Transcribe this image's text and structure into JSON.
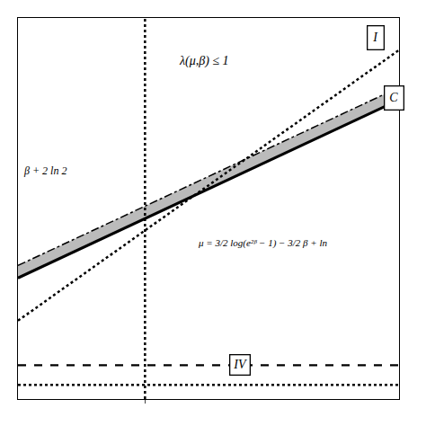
{
  "chart_data": {
    "type": "line",
    "xlim": [
      -0.15,
      1.05
    ],
    "ylim": [
      -0.12,
      0.95
    ],
    "xticks": [
      0.25
    ],
    "yticks": [],
    "tick_labels": false,
    "grid": false,
    "series": [
      {
        "type": "band",
        "x": [
          -0.15,
          1.05
        ],
        "lower": [
          0.222,
          0.718
        ],
        "upper": [
          0.255,
          0.755
        ],
        "color": "#bbbbbb"
      },
      {
        "x": [
          -0.15,
          1.05
        ],
        "values": [
          0.1,
          0.86
        ],
        "color": "#000000",
        "line_style": "dotted"
      },
      {
        "x": [
          -0.15,
          1.05
        ],
        "values": [
          0.22,
          0.72
        ],
        "color": "#000000",
        "line_style": "solid"
      },
      {
        "x": [
          -0.15,
          1.05
        ],
        "values": [
          0.255,
          0.755
        ],
        "color": "#000000",
        "line_style": "dashdot"
      },
      {
        "x": [
          -0.15,
          1.05
        ],
        "values": [
          -0.025,
          -0.025
        ],
        "color": "#000000",
        "line_style": "dashed"
      },
      {
        "x": [
          -0.15,
          1.05
        ],
        "values": [
          -0.08,
          -0.08
        ],
        "color": "#000000",
        "line_style": "dotted"
      },
      {
        "x": [
          0.25,
          0.25
        ],
        "values": [
          -0.12,
          0.95
        ],
        "color": "#000000",
        "line_style": "dotted"
      }
    ],
    "annotations": [
      {
        "text": "λ(μ,β) ≤ 1",
        "x": 0.35,
        "y": 0.83
      },
      {
        "text": "μ = 3/2 log(e²ᵝ − 1) − 3/2 β + ln",
        "x": 0.62,
        "y": 0.34
      },
      {
        "text": "β + 2 ln 2",
        "x": -0.065,
        "y": 0.52
      },
      {
        "text": "I",
        "x": 0.975,
        "y": 0.895,
        "marker": "circle"
      },
      {
        "text": "C",
        "x": 1.035,
        "y": 0.725,
        "marker": "circle"
      },
      {
        "text": "IV",
        "x": 0.55,
        "y": -0.025,
        "marker": "square"
      }
    ]
  }
}
